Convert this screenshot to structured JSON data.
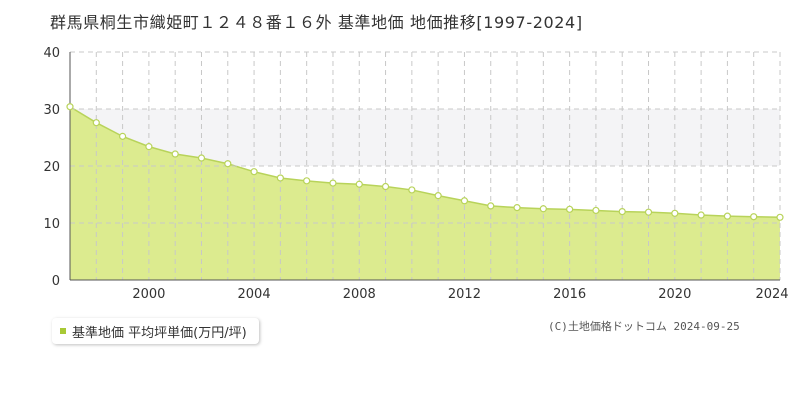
{
  "title": "群馬県桐生市織姫町１２４８番１６外 基準地価 地価推移[1997-2024]",
  "legend": {
    "label": "基準地価 平均坪単価(万円/坪)"
  },
  "copyright": "(C)土地価格ドットコム 2024-09-25",
  "colors": {
    "area_fill": "#dceb8f",
    "line": "#b8d35a",
    "marker_fill": "#ffffff",
    "marker_stroke": "#b8d35a",
    "band": "#f4f4f6",
    "grid": "#c8c8c8",
    "legend_swatch": "#a8c935"
  },
  "chart_data": {
    "type": "area",
    "title": "群馬県桐生市織姫町１２４８番１６外 基準地価 地価推移[1997-2024]",
    "xlabel": "",
    "ylabel": "",
    "xlim": [
      1997,
      2024
    ],
    "ylim": [
      0,
      40
    ],
    "x_ticks": [
      2000,
      2004,
      2008,
      2012,
      2016,
      2020,
      2024
    ],
    "y_ticks": [
      0,
      10,
      20,
      30,
      40
    ],
    "grid": true,
    "legend_position": "bottom-left",
    "series": [
      {
        "name": "基準地価 平均坪単価(万円/坪)",
        "x": [
          1997,
          1998,
          1999,
          2000,
          2001,
          2002,
          2003,
          2004,
          2005,
          2006,
          2007,
          2008,
          2009,
          2010,
          2011,
          2012,
          2013,
          2014,
          2015,
          2016,
          2017,
          2018,
          2019,
          2020,
          2021,
          2022,
          2023,
          2024
        ],
        "values": [
          30.4,
          27.6,
          25.2,
          23.4,
          22.1,
          21.4,
          20.4,
          19.0,
          17.9,
          17.4,
          17.0,
          16.8,
          16.4,
          15.8,
          14.8,
          13.9,
          13.0,
          12.7,
          12.5,
          12.4,
          12.2,
          12.0,
          11.9,
          11.7,
          11.4,
          11.2,
          11.1,
          11.0
        ]
      }
    ]
  }
}
